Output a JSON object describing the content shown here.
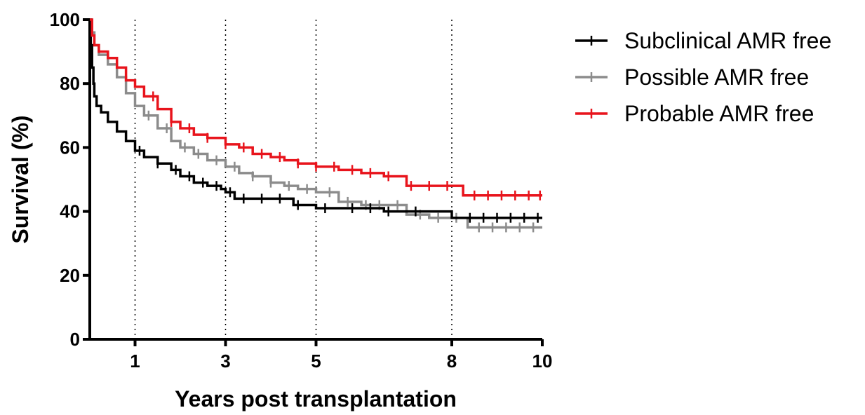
{
  "chart_data": {
    "type": "line",
    "subtype": "kaplan-meier step survival curves with censor marks",
    "xlabel": "Years post transplantation",
    "ylabel": "Survival (%)",
    "xlim": [
      0,
      10
    ],
    "ylim": [
      0,
      100
    ],
    "x_ticks": [
      1,
      3,
      5,
      8,
      10
    ],
    "x_tick_labels": [
      "1",
      "3",
      "5",
      "8",
      "10"
    ],
    "y_ticks": [
      0,
      20,
      40,
      60,
      80,
      100
    ],
    "y_tick_labels": [
      "0",
      "20",
      "40",
      "60",
      "80",
      "100"
    ],
    "vertical_dotted_gridlines_at": [
      1,
      3,
      5,
      8
    ],
    "legend_position": "top-right (outside plot)",
    "series": [
      {
        "name": "Subclinical AMR free",
        "color": "#000000",
        "x": [
          0,
          0.02,
          0.05,
          0.08,
          0.1,
          0.15,
          0.25,
          0.4,
          0.6,
          0.8,
          1.0,
          1.2,
          1.5,
          1.8,
          2.0,
          2.3,
          2.6,
          2.9,
          3.0,
          3.2,
          3.5,
          4.0,
          4.5,
          5.0,
          5.5,
          6.0,
          6.5,
          7.0,
          8.0,
          9.0,
          10.0
        ],
        "y": [
          100,
          92,
          85,
          80,
          76,
          73,
          71,
          68,
          65,
          62,
          59,
          57,
          55,
          53,
          51,
          49,
          48,
          47,
          46,
          44,
          44,
          44,
          42,
          41,
          41,
          41,
          40,
          40,
          38,
          38,
          38
        ],
        "censor_x": [
          1.1,
          1.5,
          1.9,
          2.2,
          2.5,
          2.8,
          3.1,
          3.4,
          3.8,
          4.2,
          4.6,
          5.2,
          5.8,
          6.2,
          6.6,
          7.2,
          8.4,
          8.7,
          9.0,
          9.3,
          9.6,
          9.9
        ]
      },
      {
        "name": "Possible AMR free",
        "color": "#8c8c8c",
        "x": [
          0,
          0.05,
          0.1,
          0.2,
          0.4,
          0.6,
          0.8,
          1.0,
          1.2,
          1.5,
          1.8,
          2.0,
          2.3,
          2.6,
          3.0,
          3.3,
          3.6,
          4.0,
          4.3,
          4.6,
          5.0,
          5.5,
          6.0,
          6.5,
          7.0,
          7.5,
          8.0,
          8.35,
          9.0,
          10.0
        ],
        "y": [
          100,
          96,
          92,
          89,
          86,
          82,
          77,
          73,
          70,
          66,
          62,
          60,
          58,
          56,
          54,
          52,
          51,
          49,
          48,
          47,
          46,
          43,
          42,
          42,
          39,
          38,
          38,
          35,
          35,
          35
        ],
        "censor_x": [
          1.3,
          1.7,
          2.1,
          2.4,
          2.8,
          3.2,
          3.6,
          4.0,
          4.4,
          4.8,
          5.3,
          5.7,
          6.1,
          6.4,
          6.8,
          7.3,
          7.7,
          8.1,
          8.6,
          8.9,
          9.2,
          9.5,
          9.8
        ]
      },
      {
        "name": "Probable AMR free",
        "color": "#e8141c",
        "x": [
          0,
          0.05,
          0.1,
          0.2,
          0.4,
          0.6,
          0.8,
          1.0,
          1.2,
          1.5,
          1.8,
          2.0,
          2.3,
          2.6,
          3.0,
          3.3,
          3.6,
          4.0,
          4.3,
          4.6,
          5.0,
          5.5,
          6.0,
          6.5,
          7.0,
          7.5,
          8.0,
          8.25,
          9.0,
          10.0
        ],
        "y": [
          100,
          95,
          92,
          90,
          88,
          85,
          81,
          79,
          76,
          72,
          68,
          66,
          64,
          63,
          61,
          60,
          58,
          57,
          56,
          55,
          54,
          53,
          52,
          51,
          48,
          48,
          48,
          45,
          45,
          45
        ],
        "censor_x": [
          1.4,
          1.8,
          2.2,
          2.6,
          3.0,
          3.4,
          3.8,
          4.2,
          4.6,
          5.0,
          5.4,
          5.8,
          6.2,
          6.6,
          7.1,
          7.5,
          7.9,
          8.5,
          8.8,
          9.1,
          9.4,
          9.7,
          9.95
        ]
      }
    ]
  }
}
